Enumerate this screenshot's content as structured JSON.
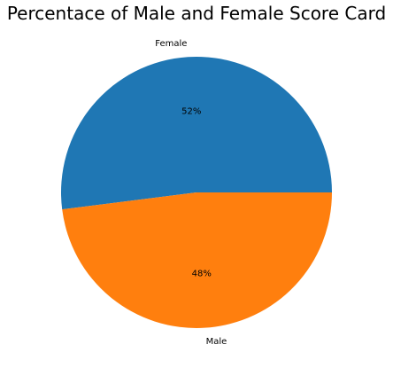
{
  "chart_data": {
    "type": "pie",
    "title": "Percentace of Male and Female Score Card",
    "slices": [
      {
        "label": "Female",
        "value": 52,
        "display": "52%",
        "color": "#1f77b4"
      },
      {
        "label": "Male",
        "value": 48,
        "display": "48%",
        "color": "#ff7f0e"
      }
    ],
    "start_angle_deg": 0,
    "direction": "counterclockwise",
    "legend": "none",
    "grid": false
  }
}
